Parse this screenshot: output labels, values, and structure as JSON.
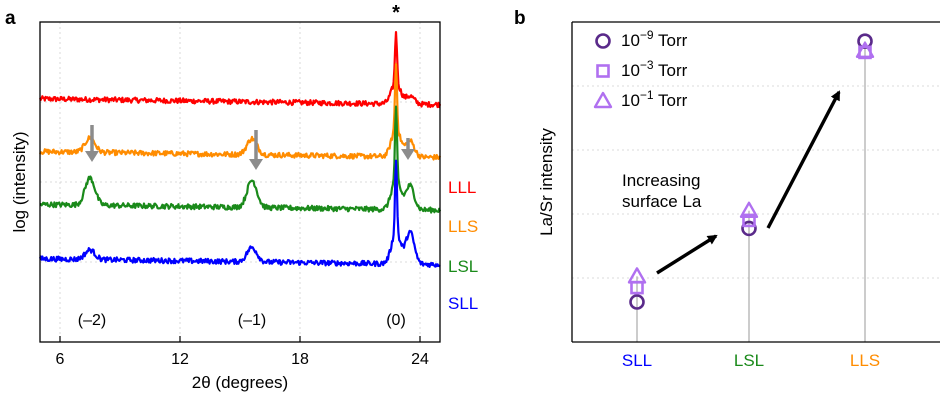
{
  "panels": {
    "a": {
      "letter": "a"
    },
    "b": {
      "letter": "b"
    }
  },
  "colors": {
    "LLL": "#ff0000",
    "LLS": "#ff8c00",
    "LSL": "#1a8a1a",
    "SLL": "#0000ff",
    "arrow_gray": "#8c8c8c",
    "marker_purple_dark": "#5a2a8a",
    "marker_purple_light": "#b070f0",
    "trend_arrow": "#000000"
  },
  "chart_data": [
    {
      "type": "line",
      "xlabel": "2θ (degrees)",
      "ylabel": "log (intensity)",
      "xlim": [
        5,
        25
      ],
      "x_ticks": [
        6,
        12,
        18,
        24
      ],
      "x_tick_labels": [
        "6",
        "12",
        "18",
        "24"
      ],
      "grid": true,
      "series": [
        {
          "name": "LLL",
          "color": "#ff0000",
          "baseline": 0.76,
          "peaks": []
        },
        {
          "name": "LLS",
          "color": "#ff8c00",
          "baseline": 0.595,
          "peaks": [
            {
              "x": 7.5,
              "h": 0.045
            },
            {
              "x": 15.6,
              "h": 0.05
            }
          ]
        },
        {
          "name": "LSL",
          "color": "#1a8a1a",
          "baseline": 0.43,
          "peaks": [
            {
              "x": 7.5,
              "h": 0.085
            },
            {
              "x": 15.6,
              "h": 0.085
            }
          ]
        },
        {
          "name": "SLL",
          "color": "#0000ff",
          "baseline": 0.26,
          "peaks": [
            {
              "x": 7.5,
              "h": 0.03
            },
            {
              "x": 15.6,
              "h": 0.045
            }
          ]
        }
      ],
      "main_peak": {
        "x": 22.8,
        "tops": {
          "LLL": 0.985,
          "LLS": 0.885,
          "LSL": 0.745,
          "SLL": 0.58
        }
      },
      "arrows_x": [
        7.6,
        15.8,
        23.4
      ],
      "annotations": [
        {
          "text": "(–2)",
          "x": 7.6
        },
        {
          "text": "(–1)",
          "x": 15.6
        },
        {
          "text": "(0)",
          "x": 22.8
        },
        {
          "text": "*",
          "x": 22.8
        }
      ]
    },
    {
      "type": "scatter",
      "ylabel": "La/Sr intensity",
      "categories": [
        "SLL",
        "LSL",
        "LLS"
      ],
      "category_colors": [
        "#0000ff",
        "#1a8a1a",
        "#ff8c00"
      ],
      "grid": true,
      "legend_position": "top-left",
      "series": [
        {
          "name": "10⁻⁹ Torr",
          "label_base": "10",
          "label_exp": "−9",
          "label_unit": " Torr",
          "marker": "circle",
          "color": "#5a2a8a",
          "values": [
            0.125,
            0.355,
            0.94
          ]
        },
        {
          "name": "10⁻³ Torr",
          "label_base": "10",
          "label_exp": "−3",
          "label_unit": " Torr",
          "marker": "square",
          "color": "#b070f0",
          "values": [
            0.17,
            0.38,
            0.905
          ]
        },
        {
          "name": "10⁻¹ Torr",
          "label_base": "10",
          "label_exp": "−1",
          "label_unit": " Torr",
          "marker": "triangle",
          "color": "#b070f0",
          "values": [
            0.205,
            0.41,
            0.91
          ]
        }
      ],
      "annotation": {
        "line1": "Increasing",
        "line2": "surface La"
      }
    }
  ]
}
